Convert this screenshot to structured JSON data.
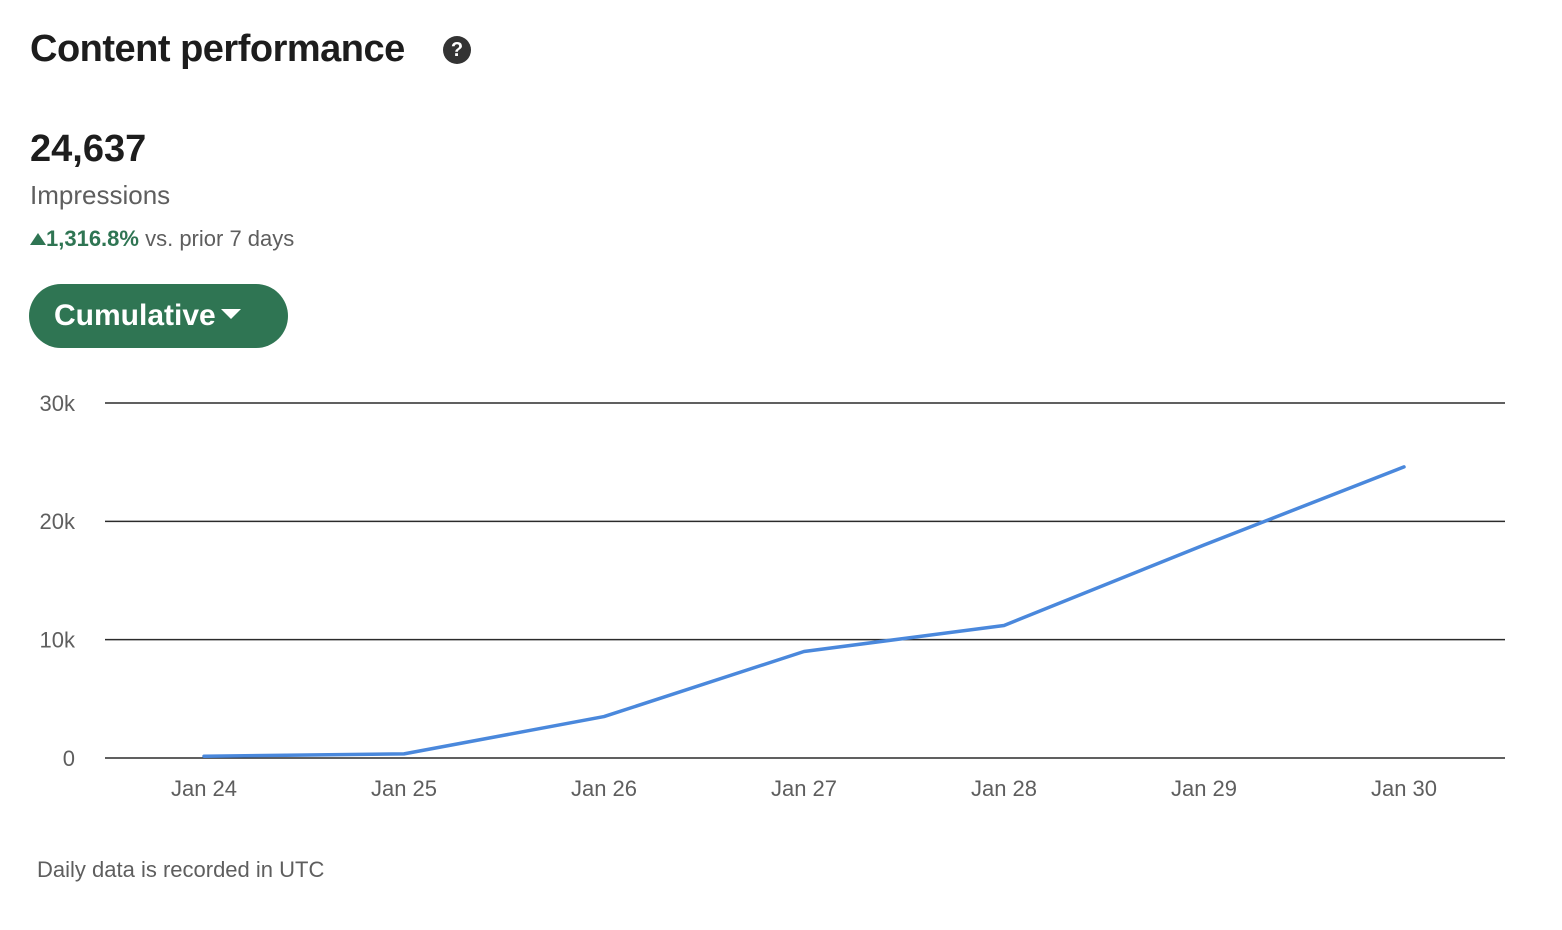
{
  "header": {
    "title": "Content performance",
    "help": "?"
  },
  "summary": {
    "value": "24,637",
    "label": "Impressions",
    "change": "1,316.8%",
    "comparison": "vs. prior 7 days"
  },
  "button": {
    "label": "Cumulative"
  },
  "chart_data": {
    "type": "line",
    "categories": [
      "Jan 24",
      "Jan 25",
      "Jan 26",
      "Jan 27",
      "Jan 28",
      "Jan 29",
      "Jan 30"
    ],
    "series": [
      {
        "name": "Impressions",
        "color": "#4a88dc",
        "values": [
          150,
          350,
          3500,
          9000,
          11200,
          18000,
          24600
        ]
      }
    ],
    "ylim": [
      0,
      30000
    ],
    "yticks": [
      0,
      {
        "value": 10000,
        "label": "10k"
      },
      {
        "value": 20000,
        "label": "20k"
      },
      {
        "value": 30000,
        "label": "30k"
      }
    ],
    "grid": true
  },
  "footnote": "Daily data is recorded in UTC"
}
